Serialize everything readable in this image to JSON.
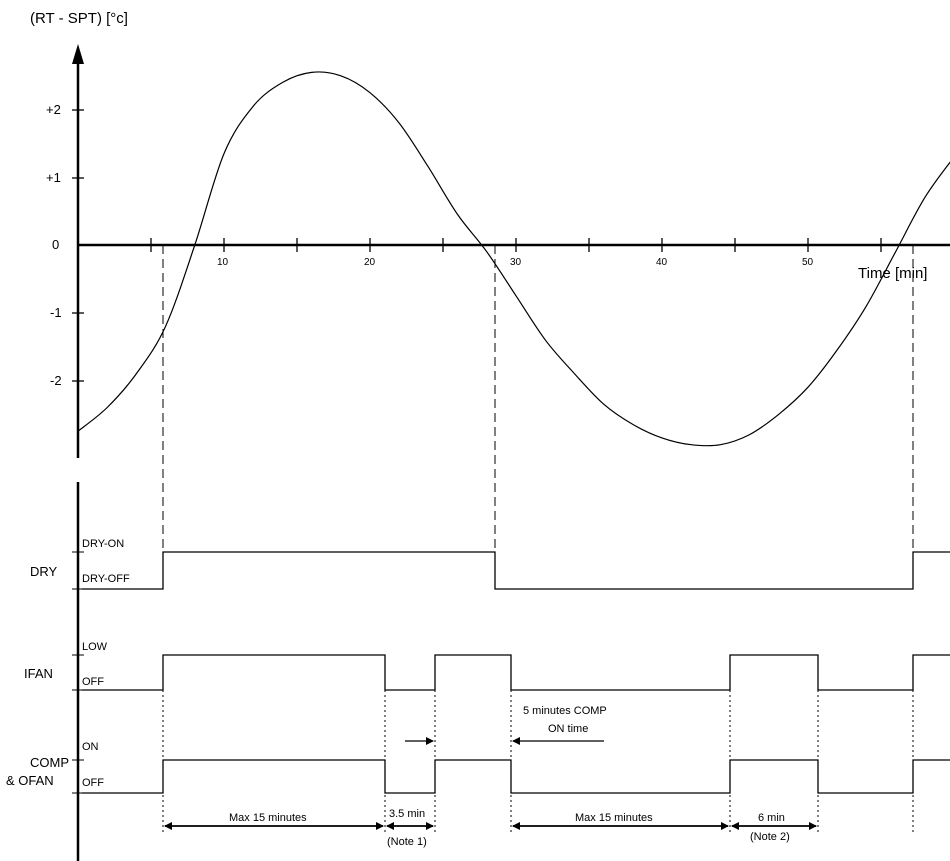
{
  "y_axis_title": "(RT - SPT) [°c]",
  "x_axis_title": "Time [min]",
  "y_ticks": [
    "+2",
    "+1",
    "0",
    "-1",
    "-2"
  ],
  "x_ticks": [
    "10",
    "20",
    "30",
    "40",
    "50"
  ],
  "signals": {
    "dry": {
      "name": "DRY",
      "high": "DRY-ON",
      "low": "DRY-OFF"
    },
    "ifan": {
      "name": "IFAN",
      "high": "LOW",
      "low": "OFF"
    },
    "comp": {
      "name_line1": "COMP",
      "name_line2": "& OFAN",
      "high": "ON",
      "low": "OFF"
    }
  },
  "annotations": {
    "comp_on_line1": "5 minutes COMP",
    "comp_on_line2": "ON time",
    "max1": "Max 15 minutes",
    "min35": "3.5 min",
    "note1": "(Note 1)",
    "max2": "Max 15 minutes",
    "min6": "6 min",
    "note2": "(Note 2)"
  },
  "chart_data": {
    "type": "line",
    "xlabel": "Time [min]",
    "ylabel": "(RT - SPT) [°c]",
    "xlim": [
      0,
      60
    ],
    "ylim": [
      -3,
      3
    ],
    "x": [
      0,
      2,
      4,
      6,
      8,
      10,
      12,
      14,
      16,
      18,
      20,
      22,
      24,
      26,
      28,
      30,
      32,
      34,
      36,
      38,
      40,
      42,
      44,
      46,
      48,
      50,
      52,
      54,
      56,
      58,
      60
    ],
    "y": [
      -2.75,
      -2.4,
      -1.9,
      -1.2,
      0.0,
      1.35,
      2.05,
      2.4,
      2.55,
      2.5,
      2.25,
      1.8,
      1.15,
      0.45,
      -0.1,
      -0.75,
      -1.4,
      -1.9,
      -2.35,
      -2.65,
      -2.85,
      -2.95,
      -2.95,
      -2.8,
      -2.5,
      -2.1,
      -1.55,
      -0.9,
      -0.1,
      0.7,
      1.3
    ]
  },
  "timing_data": {
    "dry_on": [
      [
        6.5,
        29
      ],
      [
        58.5,
        60
      ]
    ],
    "ifan_low": [
      [
        6.5,
        22
      ],
      [
        25.5,
        29
      ],
      [
        44.5,
        50.5
      ],
      [
        58.5,
        60
      ]
    ],
    "comp_on": [
      [
        6.5,
        22
      ],
      [
        25.5,
        29
      ],
      [
        44.5,
        50.5
      ],
      [
        58.5,
        60
      ]
    ]
  }
}
